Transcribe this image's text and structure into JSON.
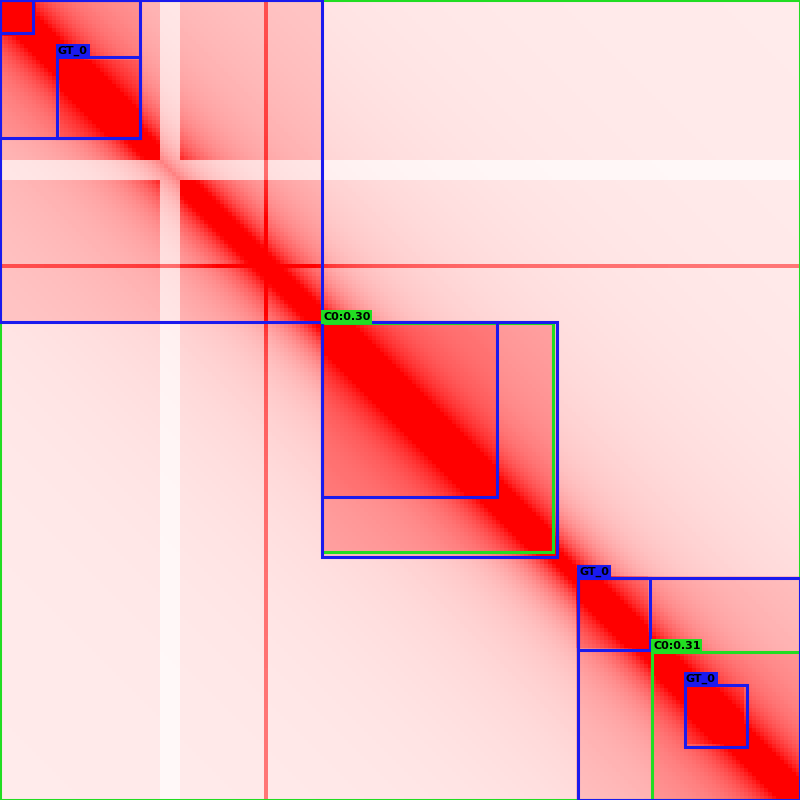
{
  "chart_data": {
    "type": "heatmap",
    "tick_labels": false,
    "xlim": [
      0,
      800
    ],
    "ylim": [
      800,
      0
    ],
    "boxes": [
      {
        "label": null,
        "color": "#22dd22",
        "coords": [
          0,
          0,
          800,
          800
        ]
      },
      {
        "label": "C0:0.30",
        "color": "#22dd22",
        "coords": [
          322,
          323,
          553,
          552
        ]
      },
      {
        "label": "C0:0.31",
        "color": "#22dd22",
        "coords": [
          652,
          652,
          800,
          800
        ]
      },
      {
        "label": null,
        "color": "#1a1aee",
        "coords": [
          0,
          0,
          322,
          322
        ]
      },
      {
        "label": null,
        "color": "#1a1aee",
        "coords": [
          0,
          0,
          33,
          33
        ]
      },
      {
        "label": null,
        "color": "#1a1aee",
        "coords": [
          0,
          0,
          140,
          138
        ]
      },
      {
        "label": "GT_0",
        "color": "#1a1aee",
        "coords": [
          57,
          57,
          140,
          138
        ]
      },
      {
        "label": null,
        "color": "#1a1aee",
        "coords": [
          322,
          322,
          557,
          557
        ]
      },
      {
        "label": null,
        "color": "#1a1aee",
        "coords": [
          322,
          322,
          497,
          497
        ]
      },
      {
        "label": null,
        "color": "#1a1aee",
        "coords": [
          578,
          578,
          800,
          800
        ]
      },
      {
        "label": "GT_0",
        "color": "#1a1aee",
        "coords": [
          578,
          578,
          650,
          650
        ]
      },
      {
        "label": "GT_0",
        "color": "#1a1aee",
        "coords": [
          685,
          685,
          747,
          747
        ]
      }
    ]
  }
}
